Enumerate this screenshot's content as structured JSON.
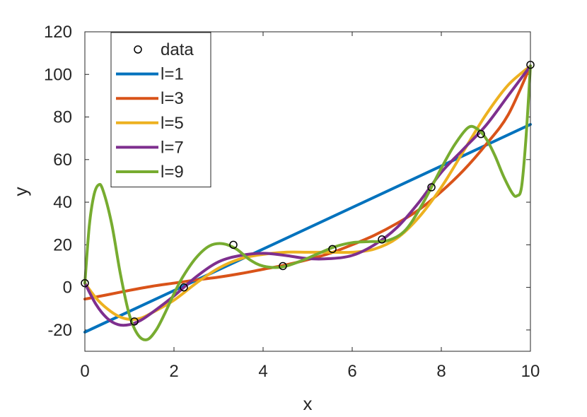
{
  "chart_data": {
    "type": "line",
    "title": "",
    "xlabel": "x",
    "ylabel": "y",
    "xlim": [
      0,
      10
    ],
    "ylim": [
      -30,
      120
    ],
    "xticks": [
      0,
      2,
      4,
      6,
      8,
      10
    ],
    "yticks": [
      -20,
      0,
      20,
      40,
      60,
      80,
      100,
      120
    ],
    "grid": false,
    "legend_position": "top-left",
    "data_points": {
      "name": "data",
      "marker": "circle",
      "x": [
        0,
        1.111,
        2.222,
        3.333,
        4.444,
        5.556,
        6.667,
        7.778,
        8.889,
        10
      ],
      "y": [
        2,
        -16,
        0,
        20,
        10,
        18,
        22.5,
        47,
        72,
        104.5
      ]
    },
    "series": [
      {
        "name": "l=1",
        "color": "#0072BD",
        "x": [
          0,
          10
        ],
        "y": [
          -21,
          76.5
        ]
      },
      {
        "name": "l=3",
        "color": "#D95319",
        "x": [
          0,
          0.5,
          1,
          1.5,
          2,
          2.5,
          3,
          3.5,
          4,
          4.5,
          5,
          5.5,
          6,
          6.5,
          7,
          7.5,
          8,
          8.5,
          9,
          9.5,
          10
        ],
        "y": [
          -5.5,
          -3.5,
          -1.4,
          0.5,
          2,
          3.5,
          4.8,
          6.5,
          8.5,
          10.5,
          13,
          16,
          20,
          24.5,
          30,
          36.5,
          45,
          55,
          67,
          81,
          104
        ]
      },
      {
        "name": "l=5",
        "color": "#EDB120",
        "x": [
          0,
          0.25,
          0.5,
          0.75,
          1,
          1.25,
          1.5,
          2,
          2.5,
          3,
          3.5,
          4,
          4.5,
          5,
          5.5,
          6,
          6.5,
          7,
          7.5,
          8,
          8.5,
          9,
          9.5,
          10
        ],
        "y": [
          2,
          -5,
          -10,
          -13.5,
          -15,
          -14.5,
          -12,
          -6,
          2,
          9,
          13.5,
          15.5,
          16.5,
          16.5,
          16.5,
          16.5,
          18,
          23,
          33,
          47,
          64,
          81,
          95,
          104
        ]
      },
      {
        "name": "l=7",
        "color": "#7E2F8E",
        "x": [
          0,
          0.25,
          0.5,
          0.75,
          1,
          1.25,
          1.5,
          2,
          2.5,
          3,
          3.5,
          4,
          4.5,
          5,
          5.5,
          6,
          6.5,
          7,
          7.5,
          8,
          8.5,
          9,
          9.5,
          10
        ],
        "y": [
          2,
          -8,
          -14.5,
          -17.5,
          -17.5,
          -15.5,
          -12,
          -4,
          5,
          12,
          15,
          16,
          15,
          13.5,
          13.5,
          15,
          20,
          28,
          40,
          54,
          65,
          76,
          90,
          104
        ]
      },
      {
        "name": "l=9",
        "color": "#77AC30",
        "x": [
          0,
          0.1,
          0.2,
          0.3,
          0.4,
          0.6,
          0.8,
          1,
          1.2,
          1.4,
          1.6,
          1.8,
          2,
          2.2,
          2.5,
          2.8,
          3.1,
          3.4,
          3.7,
          4,
          4.4,
          4.8,
          5.2,
          5.6,
          6,
          6.4,
          6.8,
          7.2,
          7.6,
          8,
          8.3,
          8.6,
          8.8,
          9,
          9.2,
          9.4,
          9.6,
          9.7,
          9.8,
          9.9,
          10
        ],
        "y": [
          2,
          29,
          43,
          48,
          46,
          30,
          6,
          -13,
          -22.5,
          -24.5,
          -20,
          -12,
          -3,
          5,
          14,
          19.5,
          20.5,
          18,
          13,
          10,
          9.5,
          12,
          15.5,
          19,
          21,
          21.5,
          22,
          27,
          40,
          56,
          67,
          75,
          74.5,
          70,
          62,
          52,
          44,
          43,
          47,
          70,
          104
        ]
      }
    ]
  }
}
